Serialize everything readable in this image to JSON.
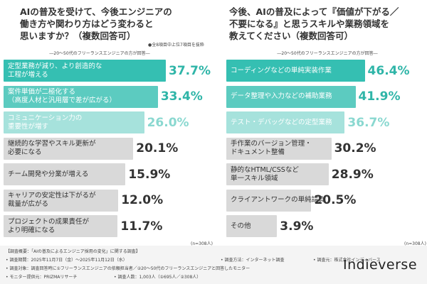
{
  "chart_data": [
    {
      "type": "bar",
      "orientation": "horizontal",
      "title": "AIの普及を受けて、今後エンジニアの\n働き方や関わり方はどう変わると\n思いますか？（複数回答可）",
      "note": "●全8項目中上位7項目を抜粋",
      "subtitle": "―20～50代のフリーランスエンジニアの方が回答―",
      "categories": [
        "定型業務が減り、より創造的な\n工程が増える",
        "案件単価が二極化する\n（高度人材と汎用層で差が広がる）",
        "コミュニケーション力の\n重要性が増す",
        "継続的な学習やスキル更新が\n必要になる",
        "チーム開発や分業が増える",
        "キャリアの安定性は下がるが\n裁量が広がる",
        "プロジェクトの成果責任が\nより明確になる"
      ],
      "values": [
        37.7,
        33.4,
        26.0,
        20.1,
        15.9,
        12.0,
        11.7
      ],
      "value_labels": [
        "37.7%",
        "33.4%",
        "26.0%",
        "20.1%",
        "15.9%",
        "12.0%",
        "11.7%"
      ],
      "colors": [
        "#35bfb2",
        "#5ccbc0",
        "#a6e2dc",
        "#d9d9d9",
        "#d9d9d9",
        "#d9d9d9",
        "#d9d9d9"
      ],
      "label_colors": [
        "#ffffff",
        "#ffffff",
        "#ffffff",
        "#333333",
        "#333333",
        "#333333",
        "#333333"
      ],
      "value_colors": [
        "#2fb5a8",
        "#2fb5a8",
        "#8ad8d0",
        "#333333",
        "#333333",
        "#333333",
        "#333333"
      ],
      "n_label": "(n=308人)"
    },
    {
      "type": "bar",
      "orientation": "horizontal",
      "title": "今後、AIの普及によって『価値が下がる／\n不要になる』と思うスキルや業務領域を\n教えてください（複数回答可）",
      "subtitle": "―20～50代のフリーランスエンジニアの方が回答―",
      "categories": [
        "コーディングなどの単純実装作業",
        "データ整理や入力などの補助業務",
        "テスト・デバッグなどの定型業務",
        "手作業のバージョン管理・\nドキュメント整備",
        "静的なHTML/CSSなど\n単一スキル領域",
        "クライアントワークの単純請負",
        "その他"
      ],
      "values": [
        46.4,
        41.9,
        36.7,
        30.2,
        28.9,
        20.5,
        3.9
      ],
      "value_labels": [
        "46.4%",
        "41.9%",
        "36.7%",
        "30.2%",
        "28.9%",
        "20.5%",
        "3.9%"
      ],
      "colors": [
        "#35bfb2",
        "#5ccbc0",
        "#a6e2dc",
        "#d9d9d9",
        "#d9d9d9",
        "#d9d9d9",
        "#d9d9d9"
      ],
      "label_colors": [
        "#ffffff",
        "#ffffff",
        "#ffffff",
        "#333333",
        "#333333",
        "#333333",
        "#333333"
      ],
      "value_colors": [
        "#2fb5a8",
        "#2fb5a8",
        "#8ad8d0",
        "#333333",
        "#333333",
        "#333333",
        "#333333"
      ],
      "n_label": "(n=308人)"
    }
  ],
  "footer": {
    "heading": "【調査概要：「AIの普及によるエンジニア採用の変化」に関する調査】",
    "items": [
      "• 調査期間：2025年11月7日（金）～2025年11月12日（水）",
      "• 調査方法：インターネット調査",
      "• 調査元：株式会社インディバース",
      "• 調査対象：調査回答時に①フリーランスエンジニアの依頼担当者／②20～50代のフリーランスエンジニアと回答したモニター",
      "• モニター提供元：PRIZMAリサーチ",
      "• 調査人数：1,003人（①695人／②308人）"
    ],
    "logo": "Indieverse"
  }
}
